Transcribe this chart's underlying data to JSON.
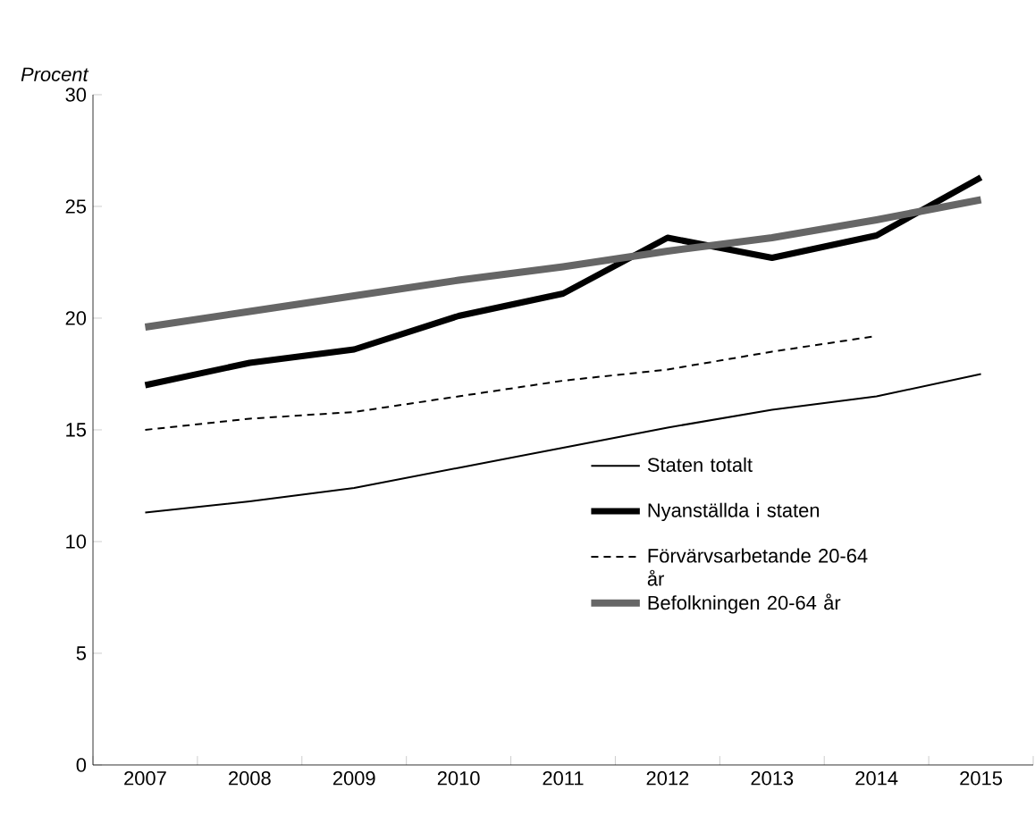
{
  "chart_data": {
    "type": "line",
    "ylabel": "*Procent*",
    "categories": [
      "2007",
      "2008",
      "2009",
      "2010",
      "2011",
      "2012",
      "2013",
      "2014",
      "2015"
    ],
    "series": [
      {
        "name": "Staten totalt",
        "color": "#000000",
        "line_style": "solid",
        "values": [
          11.3,
          11.8,
          12.4,
          13.3,
          14.2,
          15.1,
          15.9,
          16.5,
          17.5
        ]
      },
      {
        "name": "Nyanställda i staten",
        "color": "#000000",
        "line_style": "solid",
        "values": [
          17.0,
          18.0,
          18.6,
          20.1,
          21.1,
          23.6,
          22.7,
          23.7,
          26.3
        ]
      },
      {
        "name": "Förvärvsarbetande 20-64 år",
        "color": "#000000",
        "line_style": "dashed",
        "values": [
          15.0,
          15.5,
          15.8,
          16.5,
          17.2,
          17.7,
          18.5,
          19.2,
          null
        ]
      },
      {
        "name": "Befolkningen 20-64 år",
        "color": "#666666",
        "line_style": "solid",
        "values": [
          19.6,
          20.3,
          21.0,
          21.7,
          22.3,
          23.0,
          23.6,
          24.4,
          25.3
        ]
      }
    ],
    "ylim": [
      0,
      30
    ],
    "yticks": [
      0,
      5,
      10,
      15,
      20,
      25,
      30
    ],
    "legend": "bottom right",
    "grid": false
  }
}
